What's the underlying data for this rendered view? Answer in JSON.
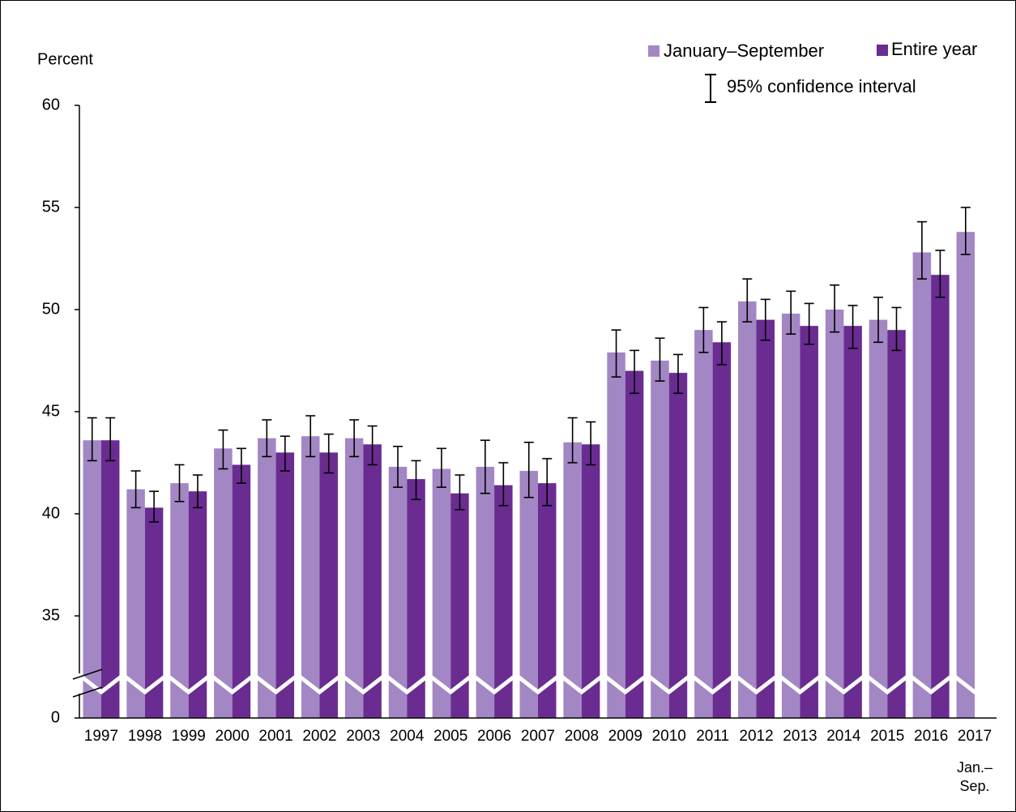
{
  "chart_data": {
    "type": "bar",
    "y_label": "Percent",
    "categories": [
      "1997",
      "1998",
      "1999",
      "2000",
      "2001",
      "2002",
      "2003",
      "2004",
      "2005",
      "2006",
      "2007",
      "2008",
      "2009",
      "2010",
      "2011",
      "2012",
      "2013",
      "2014",
      "2015",
      "2016",
      "2017"
    ],
    "category_note": [
      "Jan.–",
      "Sep."
    ],
    "series": [
      {
        "name": "January–September",
        "color": "#a287c4",
        "values": [
          43.6,
          41.2,
          41.5,
          43.2,
          43.7,
          43.8,
          43.7,
          42.3,
          42.2,
          42.3,
          42.1,
          43.5,
          47.9,
          47.5,
          49.0,
          50.4,
          49.8,
          50.0,
          49.5,
          52.8,
          53.8
        ],
        "lower": [
          42.6,
          40.3,
          40.6,
          42.2,
          42.8,
          42.8,
          42.8,
          41.3,
          41.3,
          41.0,
          40.8,
          42.5,
          46.7,
          46.5,
          47.9,
          49.4,
          48.8,
          48.9,
          48.4,
          51.5,
          52.7
        ],
        "upper": [
          44.7,
          42.1,
          42.4,
          44.1,
          44.6,
          44.8,
          44.6,
          43.3,
          43.2,
          43.6,
          43.5,
          44.7,
          49.0,
          48.6,
          50.1,
          51.5,
          50.9,
          51.2,
          50.6,
          54.3,
          55.0
        ]
      },
      {
        "name": "Entire year",
        "color": "#6a2c91",
        "values": [
          43.6,
          40.3,
          41.1,
          42.4,
          43.0,
          43.0,
          43.4,
          41.7,
          41.0,
          41.4,
          41.5,
          43.4,
          47.0,
          46.9,
          48.4,
          49.5,
          49.2,
          49.2,
          49.0,
          51.7,
          null
        ],
        "lower": [
          42.6,
          39.6,
          40.3,
          41.5,
          42.1,
          42.0,
          42.4,
          40.7,
          40.2,
          40.4,
          40.4,
          42.4,
          45.9,
          45.9,
          47.3,
          48.5,
          48.3,
          48.1,
          48.0,
          50.6,
          null
        ],
        "upper": [
          44.7,
          41.1,
          41.9,
          43.2,
          43.8,
          43.9,
          44.3,
          42.6,
          41.9,
          42.5,
          42.7,
          44.5,
          48.0,
          47.8,
          49.4,
          50.5,
          50.3,
          50.2,
          50.1,
          52.9,
          null
        ]
      }
    ],
    "error_bar_label": "95% confidence interval",
    "ylim": [
      0,
      60
    ],
    "axis_break": [
      0,
      30
    ],
    "yticks": [
      0,
      35,
      40,
      45,
      50,
      55,
      60
    ]
  }
}
